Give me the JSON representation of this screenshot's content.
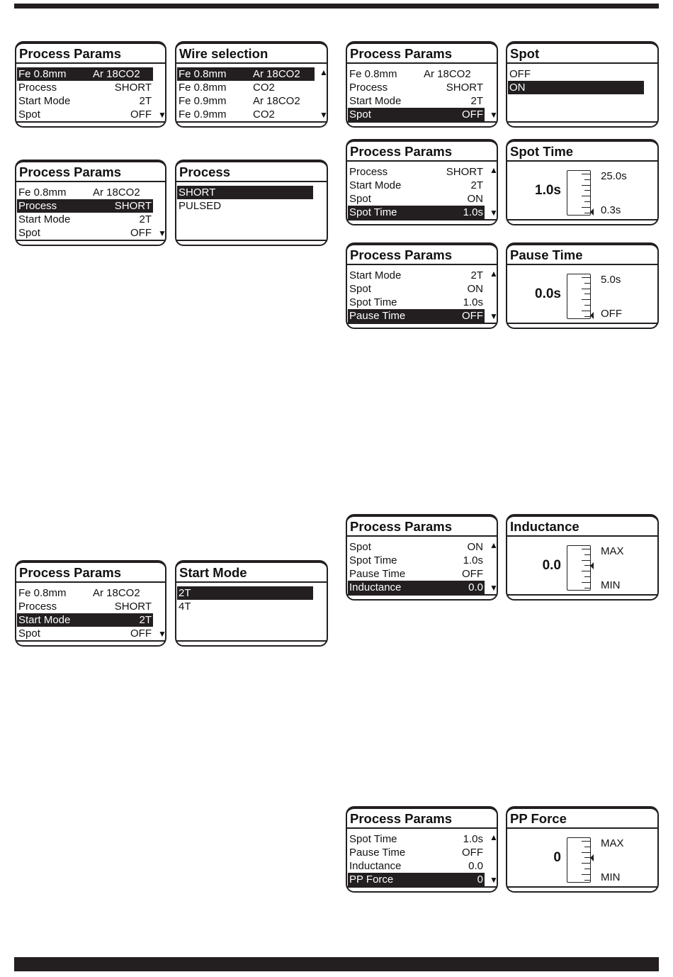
{
  "panels": [
    {
      "id": "p1",
      "type": "list2",
      "title": "Process Params",
      "rows": [
        {
          "label": "Fe 0.8mm",
          "value": "Ar 18CO2",
          "col2": true,
          "selected": true
        },
        {
          "label": "Process",
          "value": "SHORT"
        },
        {
          "label": "Start Mode",
          "value": "2T"
        },
        {
          "label": "Spot",
          "value": "OFF"
        }
      ],
      "arrow_up": false,
      "arrow_down": true
    },
    {
      "id": "wire",
      "type": "list2",
      "title": "Wire selection",
      "rows": [
        {
          "label": "Fe 0.8mm",
          "value": "Ar 18CO2",
          "col2": true,
          "selected": true
        },
        {
          "label": "Fe 0.8mm",
          "value": "CO2",
          "col2": true
        },
        {
          "label": "Fe 0.9mm",
          "value": "Ar 18CO2",
          "col2": true
        },
        {
          "label": "Fe 0.9mm",
          "value": "CO2",
          "col2": true
        }
      ],
      "arrow_up": true,
      "arrow_down": true,
      "wide": true
    },
    {
      "id": "p2",
      "type": "list2",
      "title": "Process Params",
      "rows": [
        {
          "label": "Fe 0.8mm",
          "value": "Ar 18CO2",
          "col2": true
        },
        {
          "label": "Process",
          "value": "SHORT",
          "selected": true
        },
        {
          "label": "Start Mode",
          "value": "2T"
        },
        {
          "label": "Spot",
          "value": "OFF"
        }
      ],
      "arrow_up": false,
      "arrow_down": true
    },
    {
      "id": "process",
      "type": "list1",
      "title": "Process",
      "rows": [
        {
          "label": "SHORT",
          "selected": true
        },
        {
          "label": "PULSED"
        }
      ]
    },
    {
      "id": "p3",
      "type": "list2",
      "title": "Process Params",
      "rows": [
        {
          "label": "Fe 0.8mm",
          "value": "Ar 18CO2",
          "col2": true
        },
        {
          "label": "Process",
          "value": "SHORT"
        },
        {
          "label": "Start Mode",
          "value": "2T",
          "selected": true
        },
        {
          "label": "Spot",
          "value": "OFF"
        }
      ],
      "arrow_up": false,
      "arrow_down": true
    },
    {
      "id": "startmode",
      "type": "list1",
      "title": "Start Mode",
      "rows": [
        {
          "label": "2T",
          "selected": true
        },
        {
          "label": "4T"
        }
      ]
    },
    {
      "id": "r1",
      "type": "list2",
      "title": "Process Params",
      "rows": [
        {
          "label": "Fe 0.8mm",
          "value": "Ar 18CO2",
          "col2": true
        },
        {
          "label": "Process",
          "value": "SHORT"
        },
        {
          "label": "Start Mode",
          "value": "2T"
        },
        {
          "label": "Spot",
          "value": "OFF",
          "selected": true
        }
      ],
      "arrow_up": false,
      "arrow_down": true
    },
    {
      "id": "spot",
      "type": "list1",
      "title": "Spot",
      "rows": [
        {
          "label": "OFF"
        },
        {
          "label": "ON",
          "selected": true
        }
      ]
    },
    {
      "id": "r2",
      "type": "list2",
      "title": "Process Params",
      "rows": [
        {
          "label": "Process",
          "value": "SHORT"
        },
        {
          "label": "Start Mode",
          "value": "2T"
        },
        {
          "label": "Spot",
          "value": "ON"
        },
        {
          "label": "Spot Time",
          "value": "1.0s",
          "selected": true
        }
      ],
      "arrow_up": true,
      "arrow_down": true
    },
    {
      "id": "spottime",
      "type": "gauge",
      "title": "Spot Time",
      "value": "1.0s",
      "max": "25.0s",
      "min": "0.3s",
      "level": 0
    },
    {
      "id": "r3",
      "type": "list2",
      "title": "Process Params",
      "rows": [
        {
          "label": "Start Mode",
          "value": "2T"
        },
        {
          "label": "Spot",
          "value": "ON"
        },
        {
          "label": "Spot Time",
          "value": "1.0s"
        },
        {
          "label": "Pause Time",
          "value": "OFF",
          "selected": true
        }
      ],
      "arrow_up": true,
      "arrow_down": true
    },
    {
      "id": "pausetime",
      "type": "gauge",
      "title": "Pause Time",
      "value": "0.0s",
      "max": "5.0s",
      "min": "OFF",
      "level": 0
    },
    {
      "id": "r4",
      "type": "list2",
      "title": "Process Params",
      "rows": [
        {
          "label": "Spot",
          "value": "ON"
        },
        {
          "label": "Spot Time",
          "value": "1.0s"
        },
        {
          "label": "Pause Time",
          "value": "OFF"
        },
        {
          "label": "Inductance",
          "value": "0.0",
          "selected": true
        }
      ],
      "arrow_up": true,
      "arrow_down": true
    },
    {
      "id": "inductance",
      "type": "gauge",
      "title": "Inductance",
      "value": "0.0",
      "max": "MAX",
      "min": "MIN",
      "level": 0.5
    },
    {
      "id": "r5",
      "type": "list2",
      "title": "Process Params",
      "rows": [
        {
          "label": "Spot Time",
          "value": "1.0s"
        },
        {
          "label": "Pause Time",
          "value": "OFF"
        },
        {
          "label": "Inductance",
          "value": "0.0"
        },
        {
          "label": "PP Force",
          "value": "0",
          "selected": true
        }
      ],
      "arrow_up": true,
      "arrow_down": true
    },
    {
      "id": "ppforce",
      "type": "gauge",
      "title": "PP Force",
      "value": "0",
      "max": "MAX",
      "min": "MIN",
      "level": 0.5
    }
  ]
}
